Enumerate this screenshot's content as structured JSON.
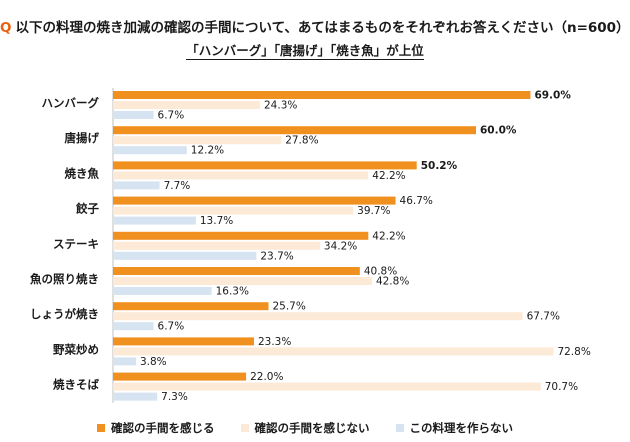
{
  "header": {
    "q_mark": "Q",
    "question": "以下の料理の焼き加減の確認の手間について、あてはまるものをそれぞれお答えください（n=600）",
    "subtitle": "「ハンバーグ」「唐揚げ」「焼き魚」が上位"
  },
  "chart_data": {
    "type": "bar",
    "orientation": "horizontal",
    "categories": [
      "ハンバーグ",
      "唐揚げ",
      "焼き魚",
      "餃子",
      "ステーキ",
      "魚の照り焼き",
      "しょうが焼き",
      "野菜炒め",
      "焼きそば"
    ],
    "series": [
      {
        "name": "確認の手間を感じる",
        "color": "#f0901e",
        "values": [
          69.0,
          60.0,
          50.2,
          46.7,
          42.2,
          40.8,
          25.7,
          23.3,
          22.0
        ],
        "labels": [
          "69.0%",
          "60.0%",
          "50.2%",
          "46.7%",
          "42.2%",
          "40.8%",
          "25.7%",
          "23.3%",
          "22.0%"
        ]
      },
      {
        "name": "確認の手間を感じない",
        "color": "#fce9d6",
        "values": [
          24.3,
          27.8,
          42.2,
          39.7,
          34.2,
          42.8,
          67.7,
          72.8,
          70.7
        ],
        "labels": [
          "24.3%",
          "27.8%",
          "42.2%",
          "39.7%",
          "34.2%",
          "42.8%",
          "67.7%",
          "72.8%",
          "70.7%"
        ]
      },
      {
        "name": "この料理を作らない",
        "color": "#d6e3f0",
        "values": [
          6.7,
          12.2,
          7.7,
          13.7,
          23.7,
          16.3,
          6.7,
          3.8,
          7.3
        ],
        "labels": [
          "6.7%",
          "12.2%",
          "7.7%",
          "13.7%",
          "23.7%",
          "16.3%",
          "6.7%",
          "3.8%",
          "7.3%"
        ]
      }
    ],
    "bold_first_series_labels_top": 3,
    "xlim": [
      0,
      100
    ],
    "grid": false,
    "legend_position": "bottom"
  }
}
